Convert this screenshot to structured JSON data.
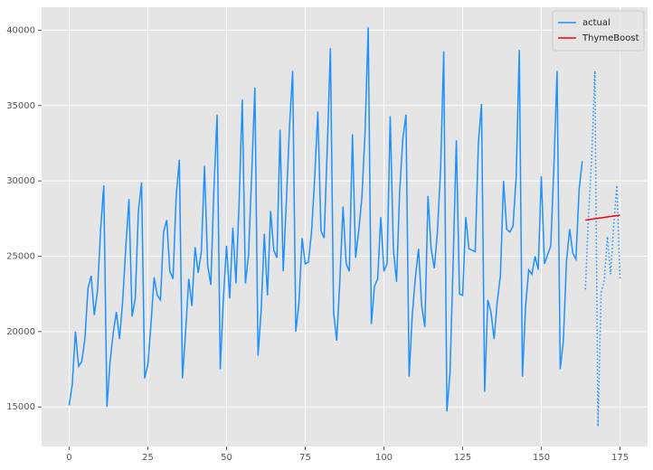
{
  "chart_data": {
    "type": "line",
    "xlim": [
      -8.75,
      183.75
    ],
    "ylim": [
      12375,
      41525
    ],
    "xticks": [
      0,
      25,
      50,
      75,
      100,
      125,
      150,
      175
    ],
    "yticks": [
      15000,
      20000,
      25000,
      30000,
      35000,
      40000
    ],
    "grid": true,
    "legend": "upper right",
    "series": [
      {
        "name": "actual",
        "color": "#1e90ff",
        "linestyle": "solid",
        "x": [
          0,
          1,
          2,
          3,
          4,
          5,
          6,
          7,
          8,
          9,
          10,
          11,
          12,
          13,
          14,
          15,
          16,
          17,
          18,
          19,
          20,
          21,
          22,
          23,
          24,
          25,
          26,
          27,
          28,
          29,
          30,
          31,
          32,
          33,
          34,
          35,
          36,
          37,
          38,
          39,
          40,
          41,
          42,
          43,
          44,
          45,
          46,
          47,
          48,
          49,
          50,
          51,
          52,
          53,
          54,
          55,
          56,
          57,
          58,
          59,
          60,
          61,
          62,
          63,
          64,
          65,
          66,
          67,
          68,
          69,
          70,
          71,
          72,
          73,
          74,
          75,
          76,
          77,
          78,
          79,
          80,
          81,
          82,
          83,
          84,
          85,
          86,
          87,
          88,
          89,
          90,
          91,
          92,
          93,
          94,
          95,
          96,
          97,
          98,
          99,
          100,
          101,
          102,
          103,
          104,
          105,
          106,
          107,
          108,
          109,
          110,
          111,
          112,
          113,
          114,
          115,
          116,
          117,
          118,
          119,
          120,
          121,
          122,
          123,
          124,
          125,
          126,
          127,
          128,
          129,
          130,
          131,
          132,
          133,
          134,
          135,
          136,
          137,
          138,
          139,
          140,
          141,
          142,
          143,
          144,
          145,
          146,
          147,
          148,
          149,
          150,
          151,
          152,
          153,
          154,
          155,
          156,
          157,
          158,
          159,
          160,
          161,
          162,
          163
        ],
        "values": [
          15100,
          16500,
          20000,
          17700,
          18000,
          19500,
          22900,
          23700,
          21100,
          22700,
          26800,
          29700,
          15000,
          18000,
          19900,
          21300,
          19500,
          22000,
          25600,
          28800,
          21000,
          22200,
          28000,
          29900,
          16900,
          17800,
          20500,
          23600,
          22400,
          22100,
          26600,
          27400,
          24000,
          23500,
          29000,
          31400,
          16900,
          20000,
          23500,
          21700,
          25600,
          23900,
          25300,
          31000,
          24400,
          23100,
          29500,
          34400,
          17500,
          22200,
          25700,
          22200,
          26900,
          23200,
          28600,
          35400,
          23200,
          25100,
          30500,
          36200,
          18400,
          21400,
          26500,
          22400,
          28000,
          25400,
          24900,
          33400,
          24000,
          28600,
          33600,
          37300,
          20000,
          21900,
          26200,
          24500,
          24600,
          26600,
          30200,
          34600,
          26700,
          26200,
          32200,
          38800,
          21300,
          19400,
          23400,
          28300,
          24500,
          24000,
          33100,
          24900,
          26700,
          28900,
          33200,
          40200,
          20500,
          23000,
          23500,
          27600,
          24000,
          24500,
          34300,
          25500,
          23300,
          29300,
          32800,
          34400,
          17000,
          21100,
          23600,
          25500,
          21700,
          20300,
          29000,
          25500,
          24200,
          26600,
          30800,
          38600,
          14700,
          17300,
          24700,
          32700,
          22500,
          22400,
          27600,
          25500,
          25400,
          25300,
          32500,
          35100,
          16000,
          22100,
          21300,
          19500,
          22000,
          23700,
          30000,
          26800,
          26600,
          27000,
          30200,
          38700,
          17000,
          21700,
          24100,
          23800,
          25000,
          24100,
          30300,
          24500,
          25100,
          25700,
          31000,
          37300,
          17500,
          19400,
          24700,
          26800,
          25200,
          24800,
          29400,
          31300
        ]
      },
      {
        "color": "#1e90ff",
        "linestyle": "dotted",
        "x": [
          164,
          165,
          166,
          167,
          168,
          169,
          170,
          171,
          172,
          173,
          174,
          175
        ],
        "values": [
          22800,
          27800,
          31500,
          37300,
          13700,
          22600,
          23400,
          26300,
          23800,
          27100,
          29700,
          23500
        ]
      },
      {
        "name": "ThymeBoost",
        "color": "#ff0000",
        "linestyle": "solid",
        "x": [
          164,
          165,
          166,
          167,
          168,
          169,
          170,
          171,
          172,
          173,
          174,
          175
        ],
        "values": [
          27400,
          27430,
          27460,
          27490,
          27520,
          27550,
          27580,
          27610,
          27640,
          27670,
          27700,
          27730
        ]
      }
    ]
  }
}
